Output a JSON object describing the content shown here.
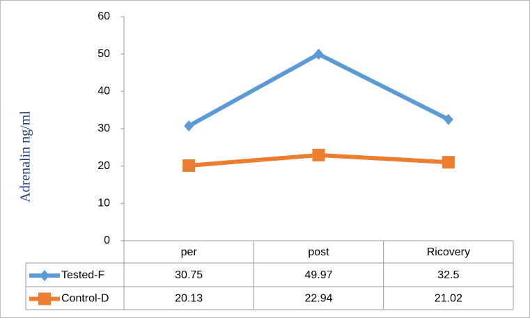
{
  "chart_data": {
    "type": "line",
    "y_label": "Adrenalin ng/ml",
    "categories": [
      "per",
      "post",
      "Ricovery"
    ],
    "series": [
      {
        "name": "Tested-F",
        "color": "#5b9bd5",
        "marker": "diamond",
        "values": [
          30.75,
          49.97,
          32.5
        ]
      },
      {
        "name": "Control-D",
        "color": "#ed7d31",
        "marker": "square",
        "values": [
          20.13,
          22.94,
          21.02
        ]
      }
    ],
    "ylim": [
      0,
      60
    ],
    "yticks": [
      0,
      10,
      20,
      30,
      40,
      50,
      60
    ],
    "grid": false,
    "data_table": true
  }
}
